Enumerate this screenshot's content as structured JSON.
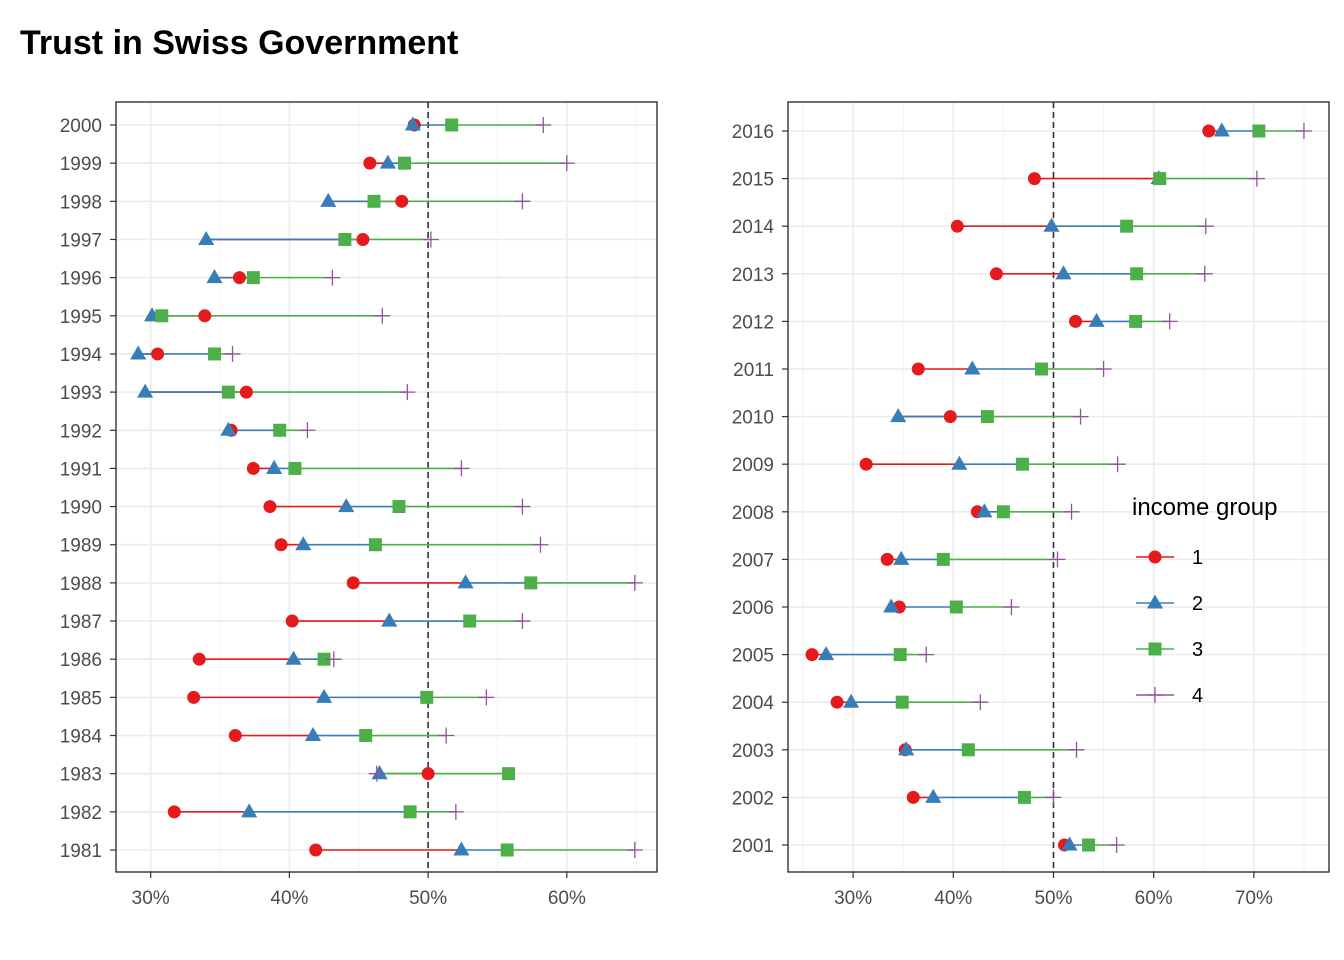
{
  "title": "Trust in Swiss Government",
  "colors": {
    "1": "#e41a1c",
    "2": "#377eb8",
    "3": "#4daf4a",
    "4": "#984ea3"
  },
  "legend": {
    "title": "income group",
    "items": [
      {
        "key": "1",
        "label": "1",
        "shape": "circle"
      },
      {
        "key": "2",
        "label": "2",
        "shape": "triangle"
      },
      {
        "key": "3",
        "label": "3",
        "shape": "square"
      },
      {
        "key": "4",
        "label": "4",
        "shape": "plus"
      }
    ]
  },
  "chart_data": [
    {
      "type": "dumbbell",
      "xlim": [
        27.5,
        66.5
      ],
      "xticks": [
        30,
        40,
        50,
        60
      ],
      "xtick_labels": [
        "30%",
        "40%",
        "50%",
        "60%"
      ],
      "reference_line": 50,
      "grid": true,
      "series_names": [
        "1",
        "2",
        "3",
        "4"
      ],
      "rows": [
        {
          "year": "2000",
          "g1": 49.0,
          "g2": 48.9,
          "g3": 51.7,
          "g4": 58.3
        },
        {
          "year": "1999",
          "g1": 45.8,
          "g2": 47.1,
          "g3": 48.3,
          "g4": 60.0
        },
        {
          "year": "1998",
          "g1": 48.1,
          "g2": 42.8,
          "g3": 46.1,
          "g4": 56.8
        },
        {
          "year": "1997",
          "g1": 45.3,
          "g2": 34.0,
          "g3": 44.0,
          "g4": 50.2
        },
        {
          "year": "1996",
          "g1": 36.4,
          "g2": 34.6,
          "g3": 37.4,
          "g4": 43.1
        },
        {
          "year": "1995",
          "g1": 33.9,
          "g2": 30.1,
          "g3": 30.8,
          "g4": 46.7
        },
        {
          "year": "1994",
          "g1": 30.5,
          "g2": 29.1,
          "g3": 34.6,
          "g4": 35.9
        },
        {
          "year": "1993",
          "g1": 36.9,
          "g2": 29.6,
          "g3": 35.6,
          "g4": 48.5
        },
        {
          "year": "1992",
          "g1": 35.8,
          "g2": 35.6,
          "g3": 39.3,
          "g4": 41.3
        },
        {
          "year": "1991",
          "g1": 37.4,
          "g2": 38.9,
          "g3": 40.4,
          "g4": 52.4
        },
        {
          "year": "1990",
          "g1": 38.6,
          "g2": 44.1,
          "g3": 47.9,
          "g4": 56.8
        },
        {
          "year": "1989",
          "g1": 39.4,
          "g2": 41.0,
          "g3": 46.2,
          "g4": 58.1
        },
        {
          "year": "1988",
          "g1": 44.6,
          "g2": 52.7,
          "g3": 57.4,
          "g4": 64.9
        },
        {
          "year": "1987",
          "g1": 40.2,
          "g2": 47.2,
          "g3": 53.0,
          "g4": 56.8
        },
        {
          "year": "1986",
          "g1": 33.5,
          "g2": 40.3,
          "g3": 42.5,
          "g4": 43.2
        },
        {
          "year": "1985",
          "g1": 33.1,
          "g2": 42.5,
          "g3": 49.9,
          "g4": 54.2
        },
        {
          "year": "1984",
          "g1": 36.1,
          "g2": 41.7,
          "g3": 45.5,
          "g4": 51.3
        },
        {
          "year": "1983",
          "g1": 50.0,
          "g2": 46.5,
          "g3": 55.8,
          "g4": 46.3
        },
        {
          "year": "1982",
          "g1": 31.7,
          "g2": 37.1,
          "g3": 48.7,
          "g4": 52.0
        },
        {
          "year": "1981",
          "g1": 41.9,
          "g2": 52.4,
          "g3": 55.7,
          "g4": 64.9
        }
      ]
    },
    {
      "type": "dumbbell",
      "xlim": [
        23.5,
        77.5
      ],
      "xticks": [
        30,
        40,
        50,
        60,
        70
      ],
      "xtick_labels": [
        "30%",
        "40%",
        "50%",
        "60%",
        "70%"
      ],
      "reference_line": 50,
      "grid": true,
      "series_names": [
        "1",
        "2",
        "3",
        "4"
      ],
      "rows": [
        {
          "year": "2016",
          "g1": 65.5,
          "g2": 66.8,
          "g3": 70.5,
          "g4": 75.0
        },
        {
          "year": "2015",
          "g1": 48.1,
          "g2": 60.5,
          "g3": 60.6,
          "g4": 70.3
        },
        {
          "year": "2014",
          "g1": 40.4,
          "g2": 49.8,
          "g3": 57.3,
          "g4": 65.2
        },
        {
          "year": "2013",
          "g1": 44.3,
          "g2": 51.0,
          "g3": 58.3,
          "g4": 65.1
        },
        {
          "year": "2012",
          "g1": 52.2,
          "g2": 54.3,
          "g3": 58.2,
          "g4": 61.6
        },
        {
          "year": "2011",
          "g1": 36.5,
          "g2": 41.9,
          "g3": 48.8,
          "g4": 55.0
        },
        {
          "year": "2010",
          "g1": 39.7,
          "g2": 34.5,
          "g3": 43.4,
          "g4": 52.7
        },
        {
          "year": "2009",
          "g1": 31.3,
          "g2": 40.6,
          "g3": 46.9,
          "g4": 56.4
        },
        {
          "year": "2008",
          "g1": 42.4,
          "g2": 43.1,
          "g3": 45.0,
          "g4": 51.8
        },
        {
          "year": "2007",
          "g1": 33.4,
          "g2": 34.8,
          "g3": 39.0,
          "g4": 50.4
        },
        {
          "year": "2006",
          "g1": 34.6,
          "g2": 33.8,
          "g3": 40.3,
          "g4": 45.8
        },
        {
          "year": "2005",
          "g1": 25.9,
          "g2": 27.3,
          "g3": 34.7,
          "g4": 37.3
        },
        {
          "year": "2004",
          "g1": 28.4,
          "g2": 29.8,
          "g3": 34.9,
          "g4": 42.7
        },
        {
          "year": "2003",
          "g1": 35.2,
          "g2": 35.3,
          "g3": 41.5,
          "g4": 52.3
        },
        {
          "year": "2002",
          "g1": 36.0,
          "g2": 38.0,
          "g3": 47.1,
          "g4": 50.0
        },
        {
          "year": "2001",
          "g1": 51.1,
          "g2": 51.6,
          "g3": 53.5,
          "g4": 56.3
        }
      ]
    }
  ]
}
